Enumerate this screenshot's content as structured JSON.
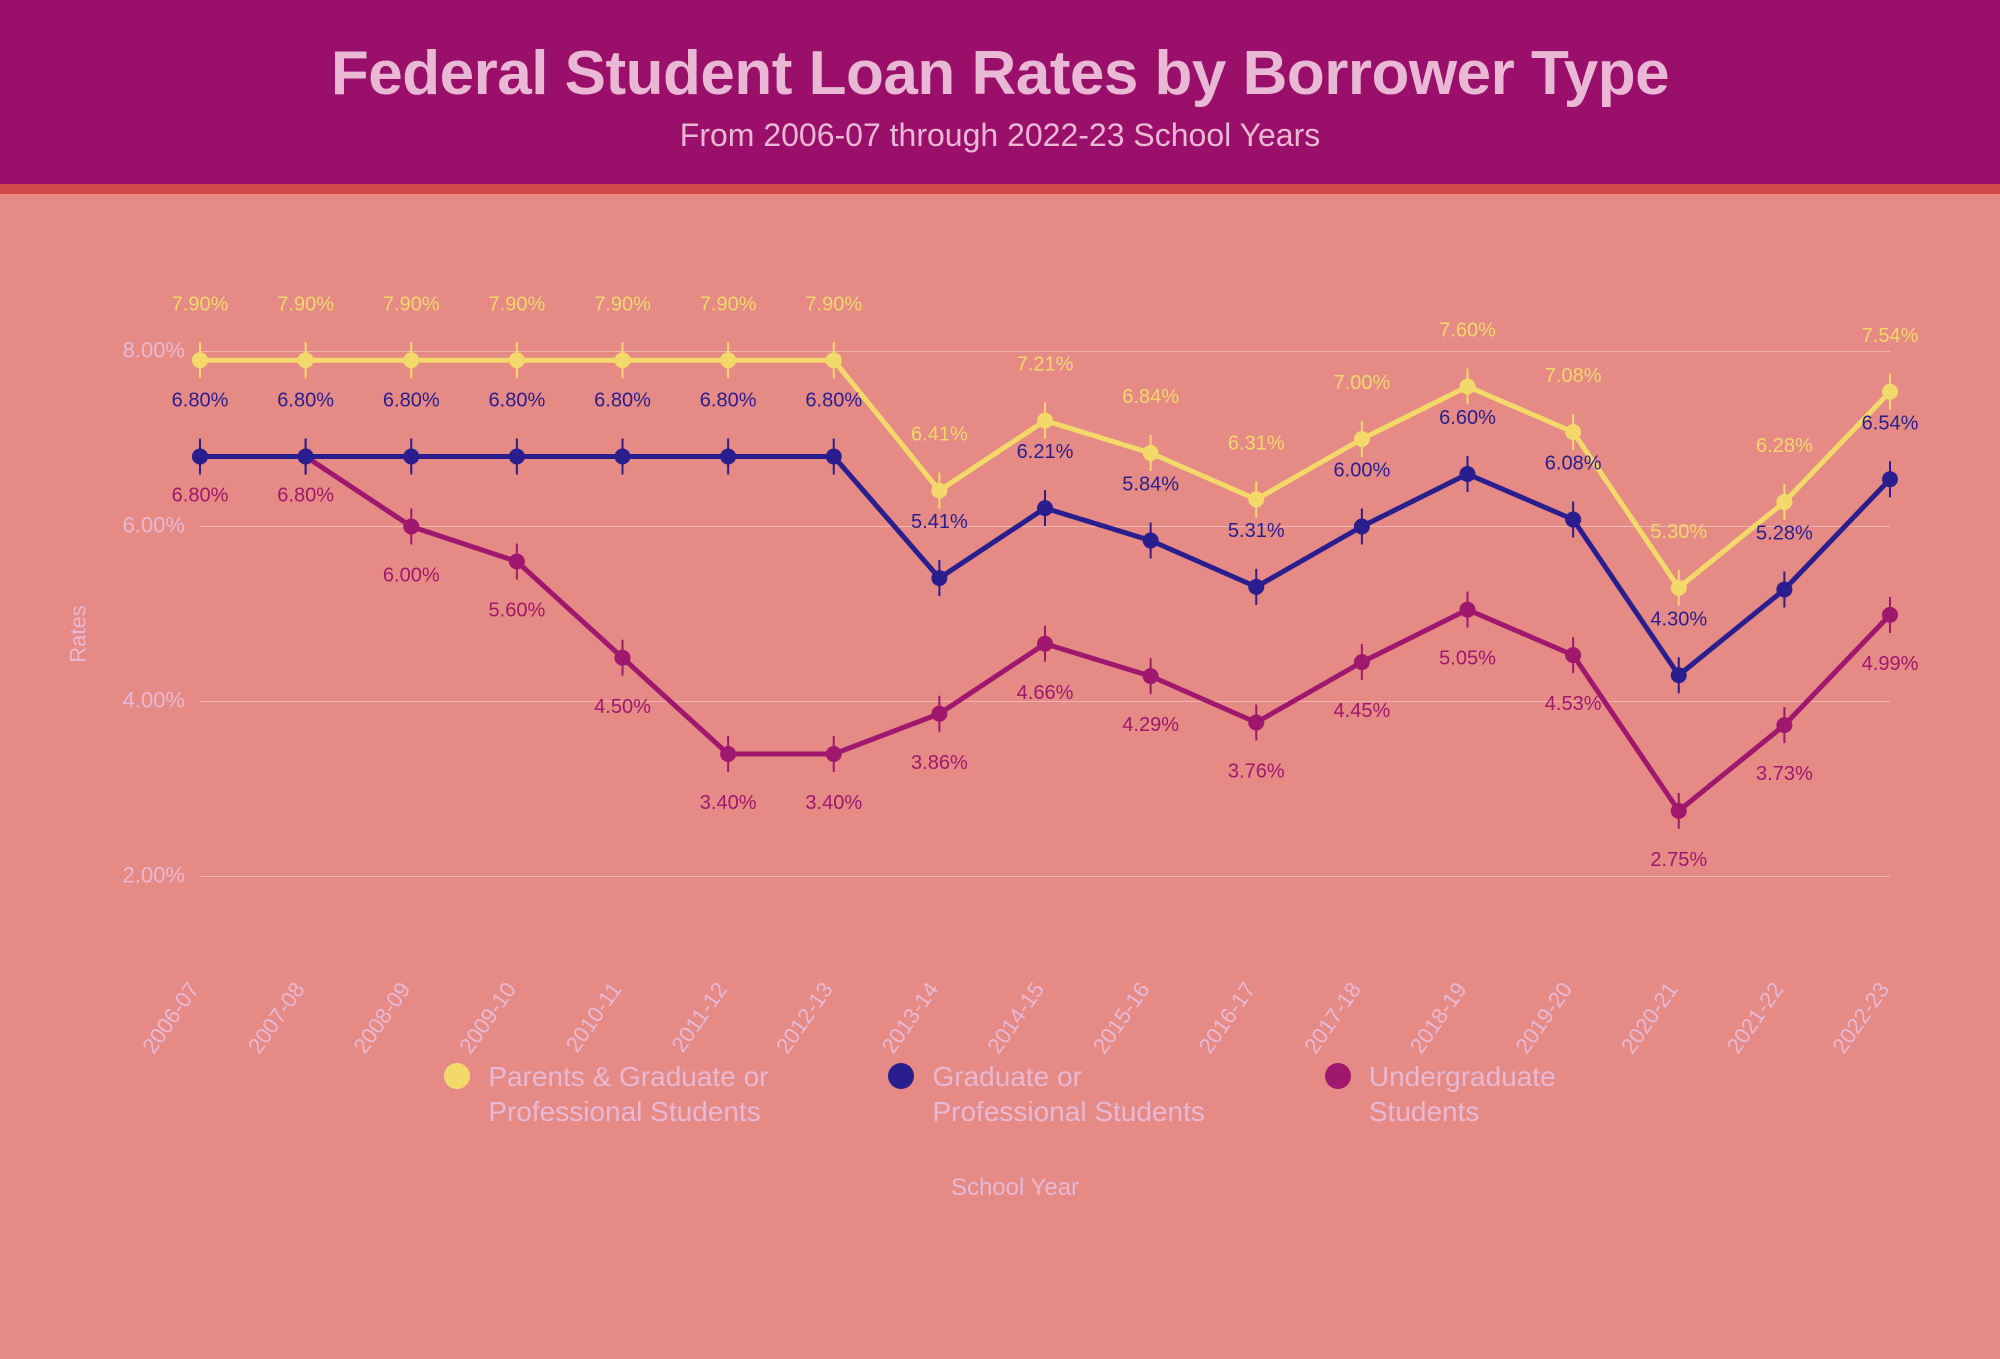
{
  "header": {
    "title": "Federal Student Loan Rates by Borrower Type",
    "subtitle": "From 2006-07 through 2022-23 School Years"
  },
  "chart": {
    "type": "line",
    "background_color": "#e58a85",
    "grid_color": "#f0b5b0",
    "text_color": "#e8b8d4",
    "header_bg": "#9a0f6a",
    "accent_bar": "#d14a4a",
    "ylabel": "Rates",
    "xlabel": "School Year",
    "ylim_min": 1.0,
    "ylim_max": 9.0,
    "yticks": [
      2.0,
      4.0,
      6.0,
      8.0
    ],
    "ytick_labels": [
      "2.00%",
      "4.00%",
      "6.00%",
      "8.00%"
    ],
    "categories": [
      "2006-07",
      "2007-08",
      "2008-09",
      "2009-10",
      "2010-11",
      "2011-12",
      "2012-13",
      "2013-14",
      "2014-15",
      "2015-16",
      "2016-17",
      "2017-18",
      "2018-19",
      "2019-20",
      "2020-21",
      "2021-22",
      "2022-23"
    ],
    "series": [
      {
        "name": "Parents & Graduate or Professional Students",
        "color": "#f3d86a",
        "label_color": "#f3d86a",
        "marker_size": 8,
        "line_width": 5,
        "values": [
          7.9,
          7.9,
          7.9,
          7.9,
          7.9,
          7.9,
          7.9,
          6.41,
          7.21,
          6.84,
          6.31,
          7.0,
          7.6,
          7.08,
          5.3,
          6.28,
          7.54
        ],
        "labels": [
          "7.90%",
          "7.90%",
          "7.90%",
          "7.90%",
          "7.90%",
          "7.90%",
          "7.90%",
          "6.41%",
          "7.21%",
          "6.84%",
          "6.31%",
          "7.00%",
          "7.60%",
          "7.08%",
          "5.30%",
          "6.28%",
          "7.54%"
        ],
        "label_dy": -50
      },
      {
        "name": "Graduate or Professional Students",
        "color": "#2a1e8f",
        "label_color": "#2a1e8f",
        "marker_size": 8,
        "line_width": 5,
        "values": [
          6.8,
          6.8,
          6.8,
          6.8,
          6.8,
          6.8,
          6.8,
          5.41,
          6.21,
          5.84,
          5.31,
          6.0,
          6.6,
          6.08,
          4.3,
          5.28,
          6.54
        ],
        "labels": [
          "6.80%",
          "6.80%",
          "6.80%",
          "6.80%",
          "6.80%",
          "6.80%",
          "6.80%",
          "5.41%",
          "6.21%",
          "5.84%",
          "5.31%",
          "6.00%",
          "6.60%",
          "6.08%",
          "4.30%",
          "5.28%",
          "6.54%"
        ],
        "label_dy": -50
      },
      {
        "name": "Undergraduate Students",
        "color": "#a0176e",
        "label_color": "#a0176e",
        "marker_size": 8,
        "line_width": 5,
        "values": [
          6.8,
          6.8,
          6.0,
          5.6,
          4.5,
          3.4,
          3.4,
          3.86,
          4.66,
          4.29,
          3.76,
          4.45,
          5.05,
          4.53,
          2.75,
          3.73,
          4.99
        ],
        "labels": [
          "6.80%",
          "6.80%",
          "6.00%",
          "5.60%",
          "4.50%",
          "3.40%",
          "3.40%",
          "3.86%",
          "4.66%",
          "4.29%",
          "3.76%",
          "4.45%",
          "5.05%",
          "4.53%",
          "2.75%",
          "3.73%",
          "4.99%"
        ],
        "label_dy": 55
      }
    ]
  },
  "legend": {
    "items": [
      {
        "label": "Parents & Graduate or\nProfessional Students",
        "color": "#f3d86a"
      },
      {
        "label": "Graduate or\nProfessional Students",
        "color": "#2a1e8f"
      },
      {
        "label": "Undergraduate\nStudents",
        "color": "#a0176e"
      }
    ]
  }
}
